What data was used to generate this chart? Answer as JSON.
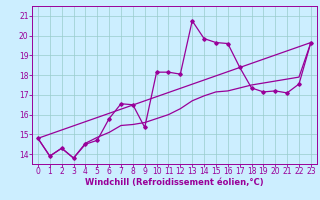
{
  "xlabel": "Windchill (Refroidissement éolien,°C)",
  "bg_color": "#cceeff",
  "line_color": "#990099",
  "grid_color": "#99cccc",
  "xlim": [
    -0.5,
    23.5
  ],
  "ylim": [
    13.5,
    21.5
  ],
  "xticks": [
    0,
    1,
    2,
    3,
    4,
    5,
    6,
    7,
    8,
    9,
    10,
    11,
    12,
    13,
    14,
    15,
    16,
    17,
    18,
    19,
    20,
    21,
    22,
    23
  ],
  "yticks": [
    14,
    15,
    16,
    17,
    18,
    19,
    20,
    21
  ],
  "line1_x": [
    0,
    1,
    2,
    3,
    4,
    5,
    6,
    7,
    8,
    9,
    10,
    11,
    12,
    13,
    14,
    15,
    16,
    17,
    18,
    19,
    20,
    21,
    22,
    23
  ],
  "line1_y": [
    14.8,
    13.9,
    14.3,
    13.8,
    14.5,
    14.7,
    15.8,
    16.55,
    16.5,
    15.35,
    18.15,
    18.15,
    18.05,
    20.75,
    19.85,
    19.65,
    19.6,
    18.4,
    17.35,
    17.15,
    17.2,
    17.1,
    17.55,
    19.65
  ],
  "line2_x": [
    0,
    1,
    2,
    3,
    4,
    5,
    6,
    7,
    8,
    9,
    10,
    11,
    12,
    13,
    14,
    15,
    16,
    17,
    18,
    19,
    20,
    21,
    22,
    23
  ],
  "line2_y": [
    14.8,
    13.9,
    14.3,
    13.8,
    14.55,
    14.85,
    15.1,
    15.45,
    15.5,
    15.6,
    15.8,
    16.0,
    16.3,
    16.7,
    16.95,
    17.15,
    17.2,
    17.35,
    17.5,
    17.6,
    17.7,
    17.8,
    17.9,
    19.65
  ],
  "line3_x": [
    0,
    23
  ],
  "line3_y": [
    14.8,
    19.65
  ],
  "xlabel_fontsize": 6,
  "tick_fontsize": 5.5
}
